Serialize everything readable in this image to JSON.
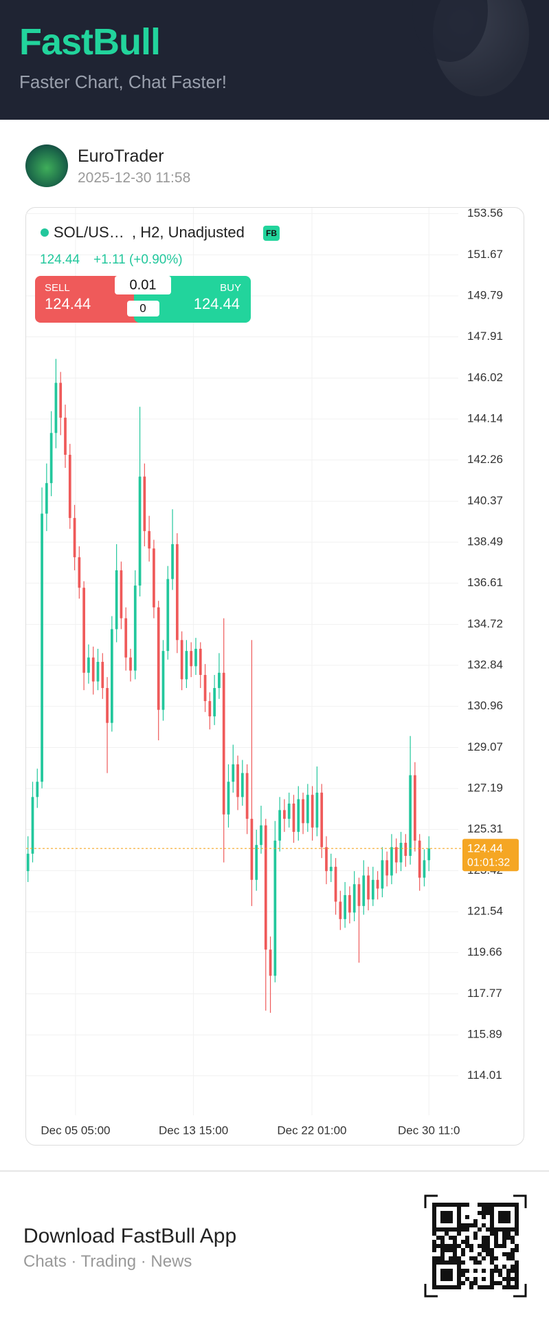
{
  "header": {
    "title": "FastBull",
    "subtitle": "Faster Chart, Chat Faster!"
  },
  "post": {
    "author": "EuroTrader",
    "date": "2025-12-30 11:58"
  },
  "widget": {
    "ticker": "SOL/US…",
    "interval": ", H2, Unadjusted",
    "badge": "FB",
    "price": "124.44",
    "change": "+1.11 (+0.90%)",
    "sell_label": "SELL",
    "sell": "124.44",
    "quantity": "0.01",
    "spread": "0",
    "buy_label": "BUY",
    "buy": "124.44"
  },
  "chart_data": {
    "type": "candlestick",
    "up_color": "#22c79c",
    "down_color": "#ef5a5a",
    "grid": true,
    "open": [
      123.4,
      124.2,
      126.8,
      127.5,
      139.8,
      141.2,
      143.5,
      145.8,
      144.2,
      142.5,
      139.6,
      137.8,
      136.4,
      132.5,
      133.2,
      132.1,
      133.0,
      131.8,
      130.2,
      134.5,
      137.2,
      135.0,
      133.2,
      132.6,
      136.5,
      141.5,
      139.0,
      138.2,
      135.5,
      130.8,
      133.5,
      136.8,
      138.4,
      134.0,
      132.2,
      133.5,
      132.8,
      133.6,
      132.4,
      131.2,
      130.5,
      131.8,
      132.5,
      126.0,
      127.5,
      128.3,
      126.8,
      127.9,
      125.8,
      123.0,
      124.6,
      125.5,
      119.8,
      118.6,
      124.8,
      126.2,
      125.8,
      126.5,
      125.2,
      126.7,
      125.6,
      126.9,
      125.4,
      127.0,
      124.5,
      123.4,
      123.6,
      122.0,
      121.2,
      122.3,
      121.5,
      122.8,
      121.8,
      123.2,
      122.1,
      123.0,
      122.6,
      123.9,
      123.2,
      124.5,
      123.8,
      124.7,
      124.1,
      127.8,
      124.8,
      123.1,
      123.9
    ],
    "high": [
      125.0,
      127.5,
      128.1,
      141.0,
      142.1,
      144.5,
      146.9,
      146.3,
      144.8,
      143.0,
      140.2,
      138.3,
      136.7,
      133.8,
      133.7,
      133.6,
      133.4,
      132.3,
      135.1,
      138.4,
      137.6,
      135.5,
      133.6,
      137.2,
      144.7,
      142.1,
      139.7,
      138.6,
      135.8,
      134.0,
      137.4,
      140.0,
      138.9,
      134.4,
      134.0,
      133.9,
      134.1,
      133.9,
      132.9,
      131.6,
      132.4,
      133.4,
      135.0,
      128.3,
      129.2,
      128.7,
      128.5,
      128.3,
      134.0,
      125.3,
      126.4,
      125.8,
      120.4,
      125.7,
      126.8,
      126.7,
      127.0,
      126.9,
      127.3,
      127.0,
      127.4,
      127.3,
      128.2,
      127.4,
      125.0,
      124.2,
      124.0,
      122.5,
      122.9,
      122.7,
      123.4,
      123.1,
      123.9,
      123.6,
      123.6,
      123.4,
      124.5,
      124.3,
      125.1,
      124.9,
      125.2,
      125.1,
      129.6,
      128.4,
      125.1,
      124.4,
      125.0
    ],
    "low": [
      122.9,
      123.8,
      126.3,
      127.2,
      139.0,
      140.6,
      142.8,
      143.4,
      141.9,
      139.1,
      137.2,
      135.9,
      131.7,
      132.0,
      131.5,
      131.7,
      131.3,
      127.9,
      129.8,
      133.9,
      134.5,
      132.6,
      132.1,
      132.2,
      136.0,
      138.3,
      137.6,
      135.0,
      129.4,
      130.3,
      133.1,
      136.3,
      133.4,
      131.7,
      131.8,
      132.3,
      132.4,
      131.8,
      130.7,
      129.9,
      130.1,
      131.3,
      123.8,
      125.4,
      127.0,
      126.2,
      126.4,
      125.1,
      121.8,
      122.5,
      124.2,
      117.0,
      116.9,
      118.3,
      124.3,
      125.2,
      125.4,
      124.7,
      124.8,
      125.1,
      125.2,
      124.8,
      125.0,
      124.0,
      122.8,
      122.9,
      121.4,
      120.7,
      120.8,
      121.0,
      121.1,
      119.2,
      121.4,
      121.6,
      121.8,
      122.1,
      122.2,
      122.7,
      122.8,
      123.3,
      123.4,
      123.6,
      123.7,
      124.3,
      122.5,
      122.7,
      123.4
    ],
    "close": [
      124.2,
      126.8,
      127.5,
      139.8,
      141.2,
      143.5,
      145.8,
      144.2,
      142.5,
      139.6,
      137.8,
      136.4,
      132.5,
      133.2,
      132.1,
      133.0,
      131.8,
      130.2,
      134.5,
      137.2,
      135.0,
      133.2,
      132.6,
      136.5,
      141.5,
      139.0,
      138.2,
      135.5,
      130.8,
      133.5,
      136.8,
      138.4,
      134.0,
      132.2,
      133.5,
      132.8,
      133.6,
      132.4,
      131.2,
      130.5,
      131.8,
      132.5,
      126.0,
      127.5,
      128.3,
      126.8,
      127.9,
      125.8,
      123.0,
      124.6,
      125.5,
      119.8,
      118.6,
      124.8,
      126.2,
      125.8,
      126.5,
      125.2,
      126.7,
      125.6,
      126.9,
      125.4,
      127.0,
      124.5,
      123.4,
      123.6,
      122.0,
      121.2,
      122.3,
      121.5,
      122.8,
      121.8,
      123.2,
      122.1,
      123.0,
      122.6,
      123.9,
      123.2,
      124.5,
      123.8,
      124.7,
      124.1,
      127.8,
      124.8,
      123.1,
      123.9,
      124.44
    ],
    "ylim": [
      112.2,
      153.83
    ],
    "yticks": [
      153.56,
      151.67,
      149.79,
      147.91,
      146.02,
      144.14,
      142.26,
      140.37,
      138.49,
      136.61,
      134.72,
      132.84,
      130.96,
      129.07,
      127.19,
      125.31,
      123.42,
      121.54,
      119.66,
      117.77,
      115.89,
      114.01
    ],
    "xlim": [
      -0.4,
      92.3
    ],
    "xticks": [
      {
        "value": 10.2,
        "label": "Dec 05 05:00"
      },
      {
        "value": 35.5,
        "label": "Dec 13 15:00"
      },
      {
        "value": 60.9,
        "label": "Dec 22 01:00"
      },
      {
        "value": 86,
        "label": "Dec 30 11:0"
      }
    ],
    "last_price": 124.44,
    "last_color": "#f5a623",
    "countdown": "01:01:32"
  },
  "footer": {
    "title": "Download FastBull App",
    "subtitle": "Chats · Trading · News"
  }
}
